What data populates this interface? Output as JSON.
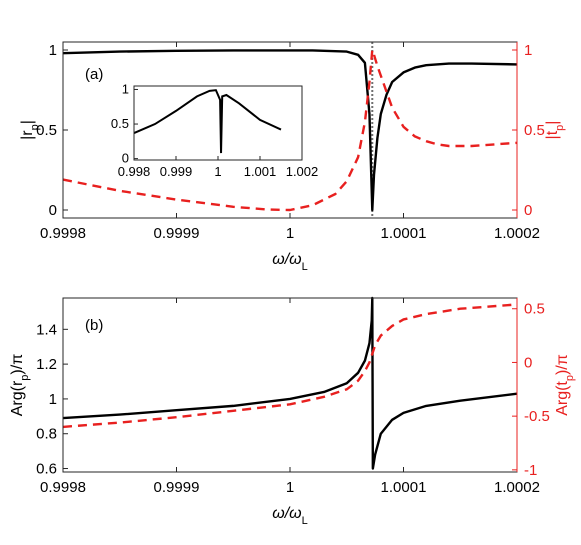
{
  "colors": {
    "black_series": "#000000",
    "red_series": "#e8201f",
    "axis": "#262626",
    "marker_line": "#707070"
  },
  "chart_data": [
    {
      "panel_label": "(a)",
      "type": "line",
      "title": "",
      "xlabel": "ω/ω_L",
      "xlabel_main": "ω/ω",
      "xlabel_sub": "L",
      "xlim": [
        0.9998,
        1.0002
      ],
      "xticks": [
        0.9998,
        0.9999,
        1,
        1.0001,
        1.0002
      ],
      "xtick_labels": [
        "0.9998",
        "0.9999",
        "1",
        "1.0001",
        "1.0002"
      ],
      "ylabel_left": "|r_p|",
      "ylabel_left_main": "|r",
      "ylabel_left_sub": "p",
      "ylabel_left_end": "|",
      "ylim_left": [
        -0.05,
        1.05
      ],
      "yticks_left": [
        0,
        0.5,
        1
      ],
      "ytick_labels_left": [
        "0",
        "0.5",
        "1"
      ],
      "ylabel_right": "|t_p|",
      "ylabel_right_main": "|t",
      "ylabel_right_sub": "p",
      "ylabel_right_end": "|",
      "ylim_right": [
        -0.05,
        1.05
      ],
      "yticks_right": [
        0,
        0.5,
        1
      ],
      "ytick_labels_right": [
        "0",
        "0.5",
        "1"
      ],
      "vertical_marker_x": 1.0000725,
      "series": [
        {
          "axis": "left",
          "style": "solid",
          "color": "#000000",
          "x": [
            0.9998,
            0.99985,
            0.9999,
            0.99995,
            1.00002,
            1.00005,
            1.00006,
            1.000066,
            1.00007,
            1.0000725,
            1.000074,
            1.000077,
            1.00008,
            1.000085,
            1.00009,
            1.0001,
            1.00011,
            1.00012,
            1.00014,
            1.00016,
            1.0002
          ],
          "y": [
            0.98,
            0.99,
            0.995,
            0.997,
            0.997,
            0.99,
            0.97,
            0.92,
            0.6,
            0.0,
            0.22,
            0.45,
            0.6,
            0.72,
            0.8,
            0.86,
            0.89,
            0.905,
            0.915,
            0.915,
            0.91
          ]
        },
        {
          "axis": "right",
          "style": "dashed",
          "color": "#e8201f",
          "x": [
            0.9998,
            0.99985,
            0.9999,
            0.99995,
            0.99998,
            1.0,
            1.00002,
            1.00004,
            1.00005,
            1.00006,
            1.000066,
            1.00007,
            1.0000725,
            1.000074,
            1.000077,
            1.00008,
            1.000085,
            1.00009,
            1.0001,
            1.00011,
            1.00012,
            1.00013,
            1.00014,
            1.00016,
            1.0002
          ],
          "y": [
            0.19,
            0.12,
            0.065,
            0.02,
            0.003,
            0.0,
            0.03,
            0.1,
            0.18,
            0.33,
            0.55,
            0.8,
            1.0,
            0.97,
            0.9,
            0.84,
            0.74,
            0.64,
            0.52,
            0.46,
            0.43,
            0.41,
            0.4,
            0.4,
            0.42
          ]
        }
      ],
      "inset": {
        "type": "line",
        "xlim": [
          0.998,
          1.002
        ],
        "xticks": [
          0.998,
          0.999,
          1,
          1.001,
          1.002
        ],
        "xtick_labels": [
          "0.998",
          "0.999",
          "1",
          "1.001",
          "1.002"
        ],
        "ylim": [
          -0.02,
          1.05
        ],
        "yticks": [
          0,
          0.5,
          1
        ],
        "ytick_labels": [
          "0",
          "0.5",
          "1"
        ],
        "series": [
          {
            "style": "solid",
            "color": "#000000",
            "x": [
              0.998,
              0.9985,
              0.999,
              0.9995,
              0.9998,
              0.99995,
              1.00005,
              1.0000725,
              1.0001,
              1.0002,
              1.0005,
              1.001,
              1.0015
            ],
            "y": [
              0.37,
              0.5,
              0.69,
              0.9,
              0.98,
              0.99,
              0.85,
              0.08,
              0.9,
              0.92,
              0.8,
              0.56,
              0.42
            ]
          }
        ]
      }
    },
    {
      "panel_label": "(b)",
      "type": "line",
      "title": "",
      "xlabel": "ω/ω_L",
      "xlabel_main": "ω/ω",
      "xlabel_sub": "L",
      "xlim": [
        0.9998,
        1.0002
      ],
      "xticks": [
        0.9998,
        0.9999,
        1,
        1.0001,
        1.0002
      ],
      "xtick_labels": [
        "0.9998",
        "0.9999",
        "1",
        "1.0001",
        "1.0002"
      ],
      "ylabel_left": "Arg(r_p)/π",
      "ylabel_left_main": "Arg(r",
      "ylabel_left_sub": "p",
      "ylabel_left_end": ")/π",
      "ylim_left": [
        0.58,
        1.58
      ],
      "yticks_left": [
        0.6,
        0.8,
        1,
        1.2,
        1.4
      ],
      "ytick_labels_left": [
        "0.6",
        "0.8",
        "1",
        "1.2",
        "1.4"
      ],
      "ylabel_right": "Arg(t_p)/π",
      "ylabel_right_main": "Arg(t",
      "ylabel_right_sub": "p",
      "ylabel_right_end": ")/π",
      "ylim_right": [
        -1.02,
        0.6
      ],
      "yticks_right": [
        -1,
        -0.5,
        0,
        0.5
      ],
      "ytick_labels_right": [
        "-1",
        "-0.5",
        "0",
        "0.5"
      ],
      "series": [
        {
          "axis": "left",
          "style": "solid",
          "color": "#000000",
          "x": [
            0.9998,
            0.99985,
            0.9999,
            0.99995,
            1.0,
            1.00003,
            1.00005,
            1.00006,
            1.000066,
            1.00007,
            1.000072,
            1.0000725,
            1.000073,
            1.000075,
            1.00008,
            1.00009,
            1.0001,
            1.00012,
            1.00015,
            1.0002
          ],
          "y": [
            0.89,
            0.91,
            0.935,
            0.96,
            1.0,
            1.04,
            1.09,
            1.15,
            1.22,
            1.32,
            1.45,
            1.58,
            0.6,
            0.68,
            0.8,
            0.88,
            0.92,
            0.96,
            0.99,
            1.03
          ]
        },
        {
          "axis": "right",
          "style": "dashed",
          "color": "#e8201f",
          "x": [
            0.9998,
            0.99985,
            0.9999,
            0.99995,
            1.0,
            1.00003,
            1.00005,
            1.00006,
            1.000066,
            1.00007,
            1.0000725,
            1.000075,
            1.00008,
            1.00009,
            1.0001,
            1.00012,
            1.00015,
            1.0002
          ],
          "y": [
            -0.6,
            -0.56,
            -0.51,
            -0.45,
            -0.39,
            -0.32,
            -0.25,
            -0.17,
            -0.08,
            0.0,
            0.08,
            0.16,
            0.25,
            0.34,
            0.4,
            0.45,
            0.5,
            0.54
          ]
        }
      ]
    }
  ]
}
